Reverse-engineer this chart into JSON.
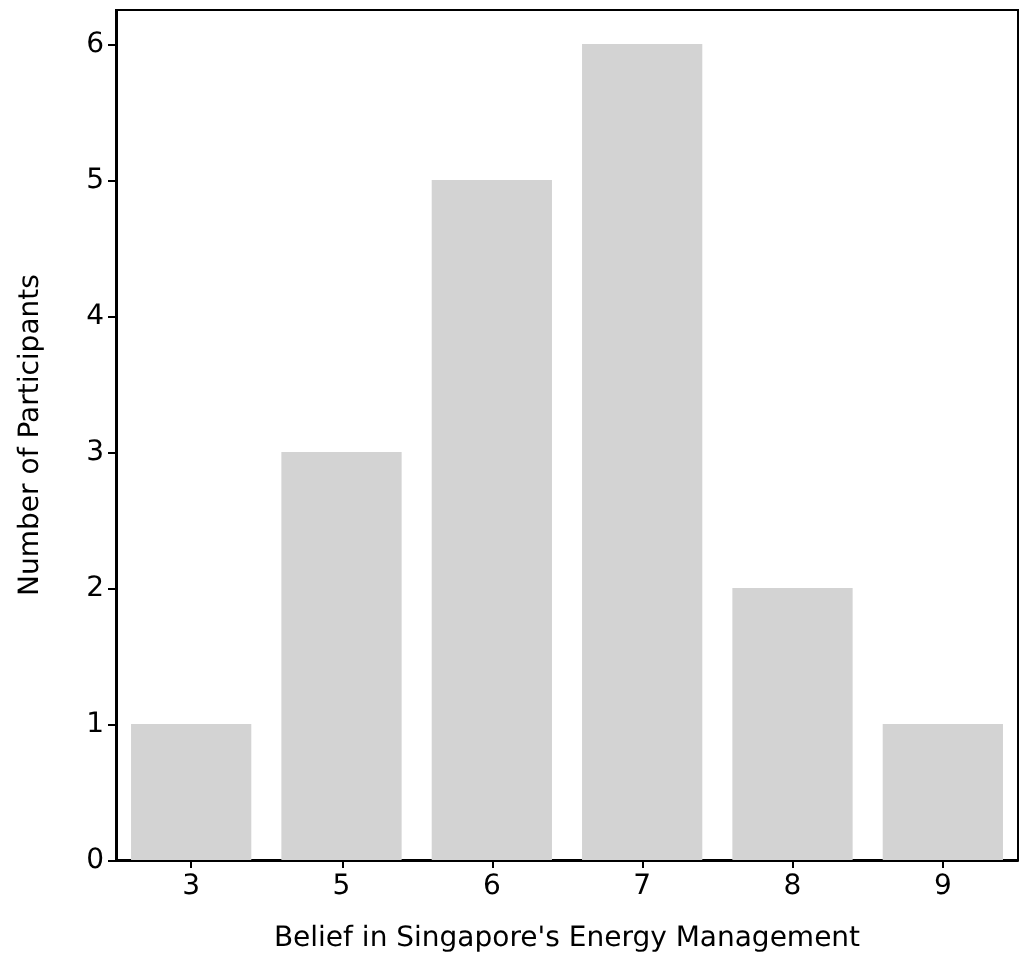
{
  "chart_data": {
    "type": "bar",
    "xlabel": "Belief in Singapore's Energy Management",
    "ylabel": "Number of Participants",
    "categories": [
      "3",
      "5",
      "6",
      "7",
      "8",
      "9"
    ],
    "values": [
      1,
      3,
      5,
      6,
      2,
      1
    ],
    "color": "#d3d3d3",
    "ylim": [
      0,
      6.25
    ],
    "yticks": [
      0,
      1,
      2,
      3,
      4,
      5,
      6
    ],
    "grid": false
  }
}
